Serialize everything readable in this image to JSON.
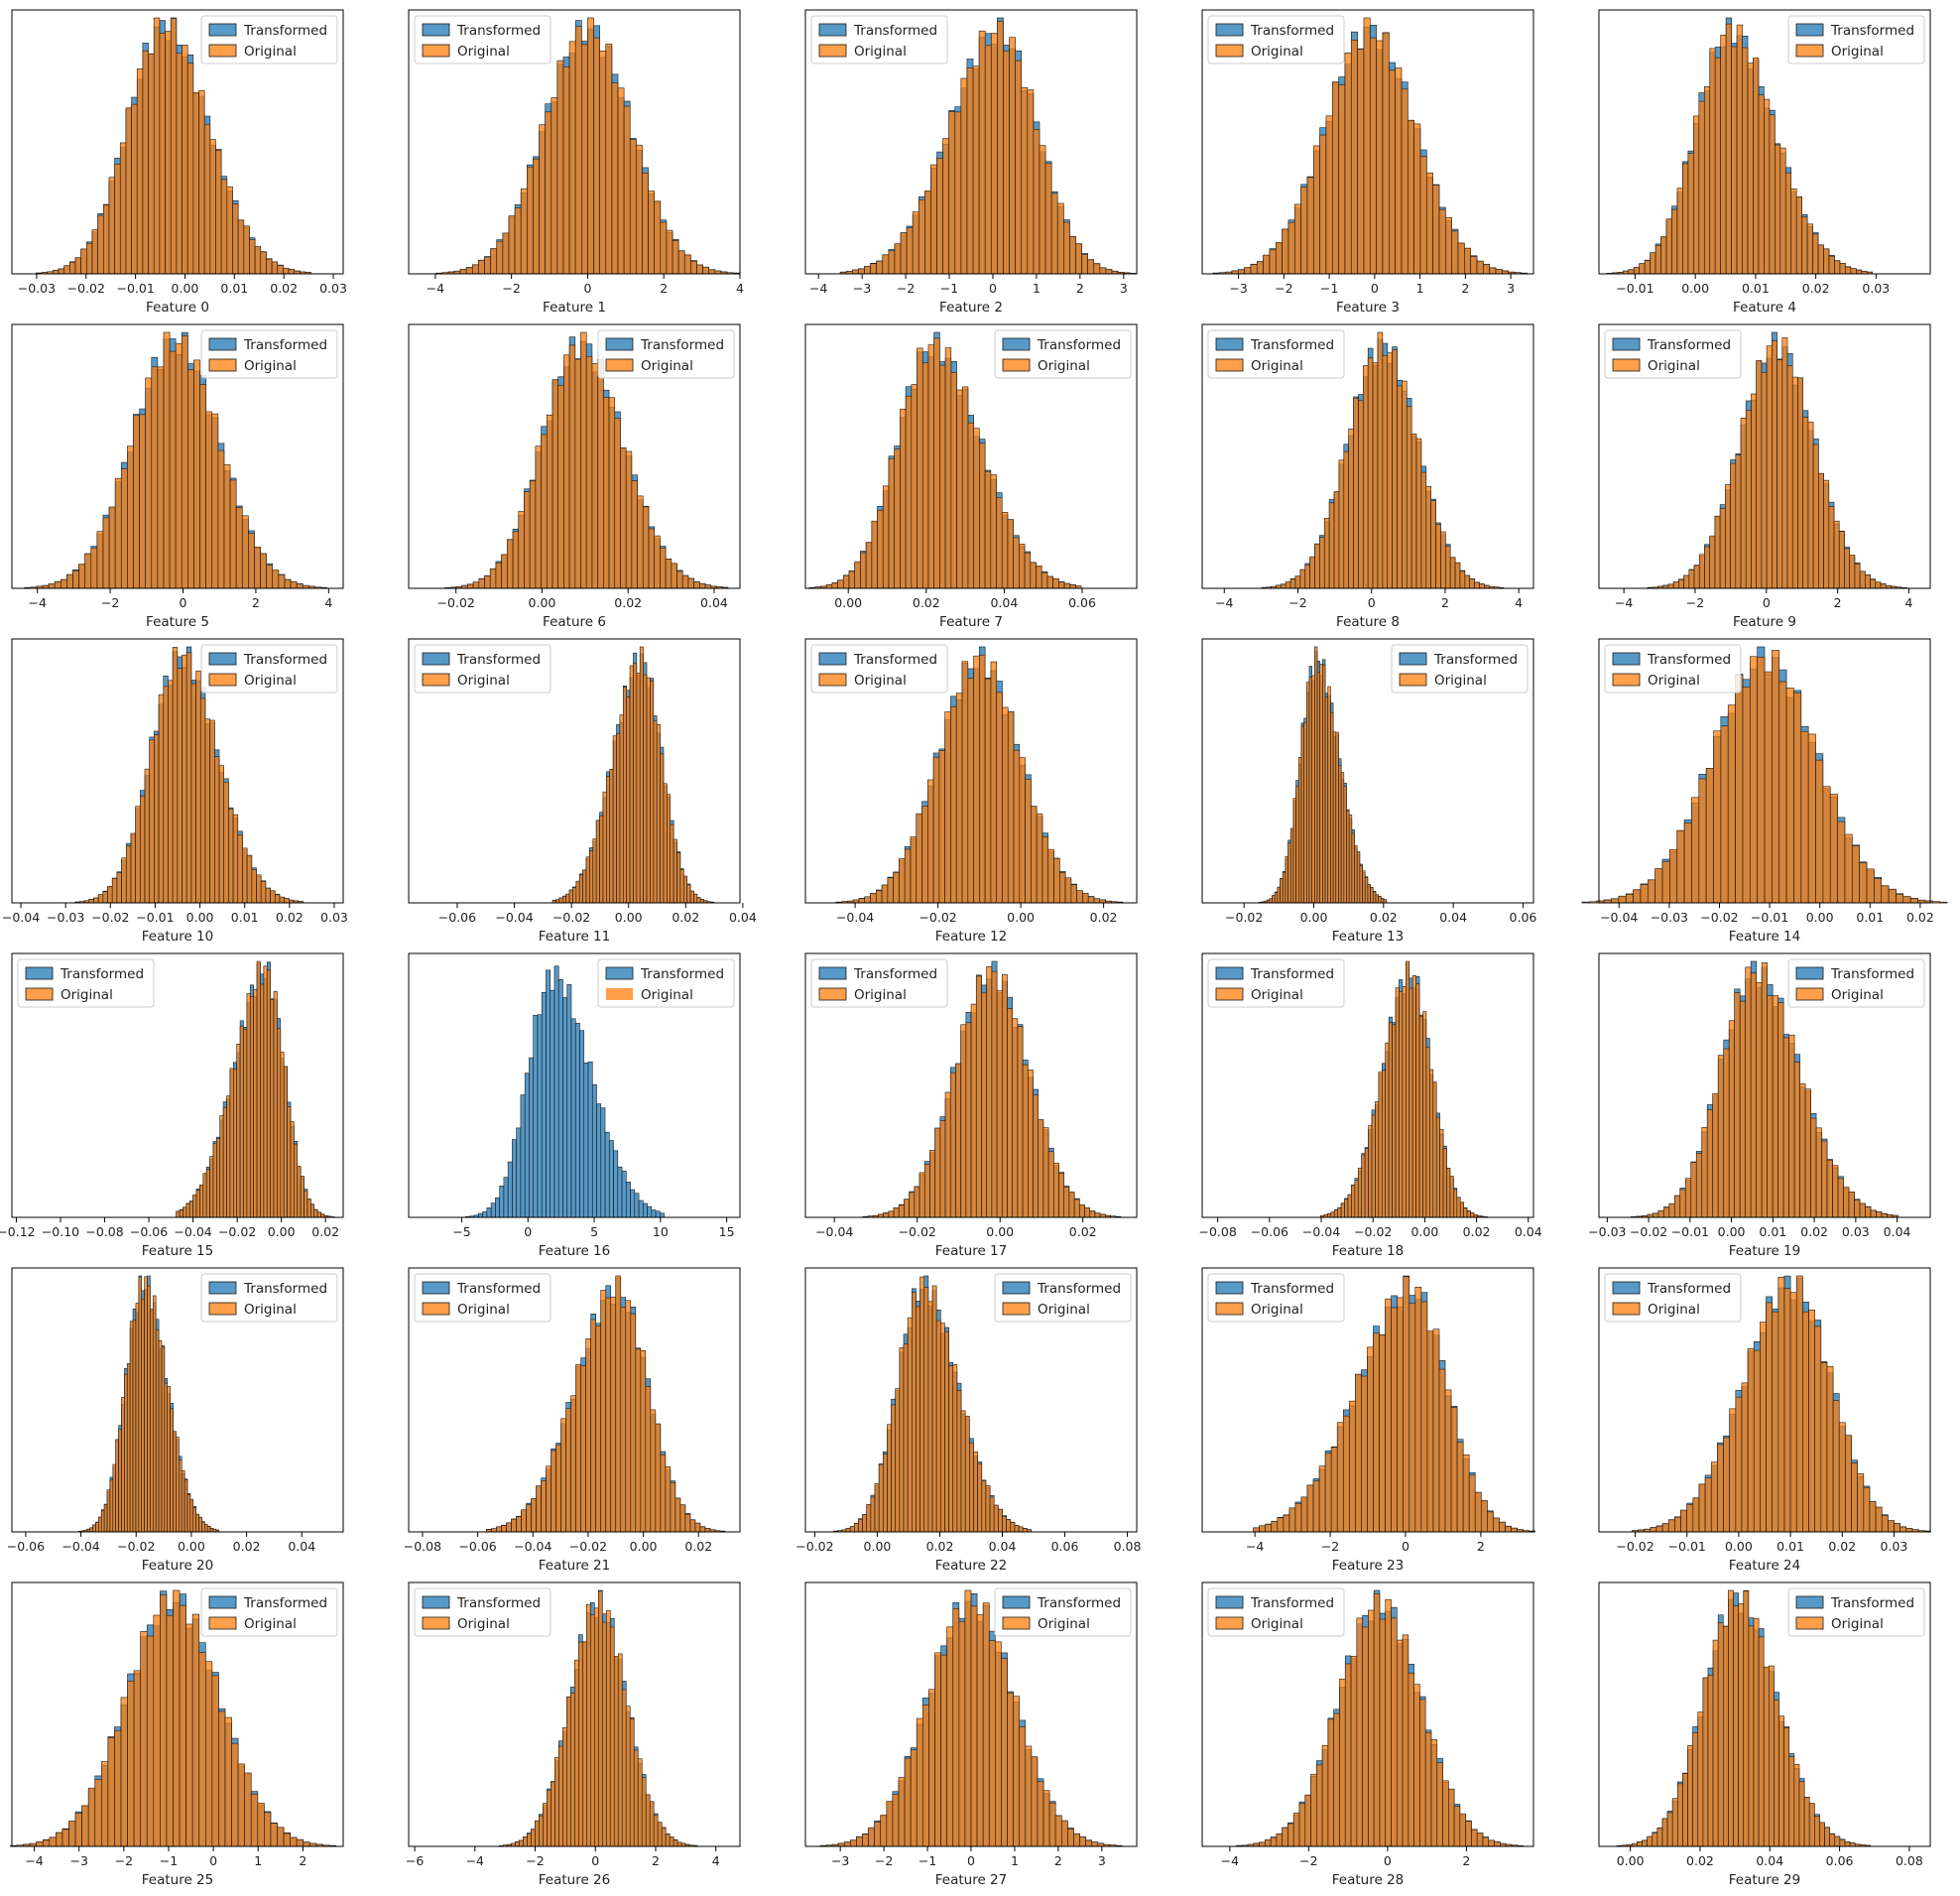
{
  "figure": {
    "legend_labels": [
      "Transformed",
      "Original"
    ],
    "colors": {
      "transformed": "#1f77b4",
      "original": "#ff7f0e"
    }
  },
  "chart_data": [
    {
      "type": "bar",
      "xlabel": "Feature 0",
      "xlim": [
        -0.035,
        0.032
      ],
      "xticks": [
        -0.03,
        -0.02,
        -0.01,
        0.0,
        0.01,
        0.02,
        0.03
      ],
      "mean": -0.004,
      "std": 0.0082,
      "skew": 0.3,
      "legend": "top-right"
    },
    {
      "type": "bar",
      "xlabel": "Feature 1",
      "xlim": [
        -4.7,
        4.0
      ],
      "xticks": [
        -4,
        -2,
        0,
        2,
        4
      ],
      "mean": 0.0,
      "std": 1.15,
      "skew": 0,
      "legend": "top-left"
    },
    {
      "type": "bar",
      "xlabel": "Feature 2",
      "xlim": [
        -4.3,
        3.3
      ],
      "xticks": [
        -4,
        -3,
        -2,
        -1,
        0,
        1,
        2,
        3
      ],
      "mean": 0.1,
      "std": 1.0,
      "skew": -0.4,
      "legend": "top-left"
    },
    {
      "type": "bar",
      "xlabel": "Feature 3",
      "xlim": [
        -3.8,
        3.5
      ],
      "xticks": [
        -3,
        -2,
        -1,
        0,
        1,
        2,
        3
      ],
      "mean": -0.1,
      "std": 1.0,
      "skew": 0,
      "legend": "top-left"
    },
    {
      "type": "bar",
      "xlabel": "Feature 4",
      "xlim": [
        -0.016,
        0.039
      ],
      "xticks": [
        -0.01,
        0.0,
        0.01,
        0.02,
        0.03
      ],
      "mean": 0.006,
      "std": 0.0065,
      "skew": 0.4,
      "legend": "top-right"
    },
    {
      "type": "bar",
      "xlabel": "Feature 5",
      "xlim": [
        -4.7,
        4.4
      ],
      "xticks": [
        -4,
        -2,
        0,
        2,
        4
      ],
      "mean": -0.2,
      "std": 1.2,
      "skew": 0,
      "legend": "top-right"
    },
    {
      "type": "bar",
      "xlabel": "Feature 6",
      "xlim": [
        -0.031,
        0.046
      ],
      "xticks": [
        -0.02,
        0.0,
        0.02,
        0.04
      ],
      "mean": 0.009,
      "std": 0.0095,
      "skew": 0.2,
      "legend": "top-right"
    },
    {
      "type": "bar",
      "xlabel": "Feature 7",
      "xlim": [
        -0.011,
        0.074
      ],
      "xticks": [
        0.0,
        0.02,
        0.04,
        0.06
      ],
      "mean": 0.022,
      "std": 0.0105,
      "skew": 0.5,
      "legend": "top-right"
    },
    {
      "type": "bar",
      "xlabel": "Feature 8",
      "xlim": [
        -4.6,
        4.4
      ],
      "xticks": [
        -4,
        -2,
        0,
        2,
        4
      ],
      "mean": 0.3,
      "std": 0.95,
      "skew": 0,
      "legend": "top-left"
    },
    {
      "type": "bar",
      "xlabel": "Feature 9",
      "xlim": [
        -4.7,
        4.6
      ],
      "xticks": [
        -4,
        -2,
        0,
        2,
        4
      ],
      "mean": 0.3,
      "std": 1.05,
      "skew": 0,
      "legend": "top-left"
    },
    {
      "type": "bar",
      "xlabel": "Feature 10",
      "xlim": [
        -0.042,
        0.032
      ],
      "xticks": [
        -0.04,
        -0.03,
        -0.02,
        -0.01,
        0.0,
        0.01,
        0.02,
        0.03
      ],
      "mean": -0.004,
      "std": 0.0075,
      "skew": 0.3,
      "legend": "top-right"
    },
    {
      "type": "bar",
      "xlabel": "Feature 11",
      "xlim": [
        -0.077,
        0.039
      ],
      "xticks": [
        -0.06,
        -0.04,
        -0.02,
        0.0,
        0.02,
        0.04
      ],
      "mean": 0.004,
      "std": 0.0085,
      "skew": -0.5,
      "legend": "top-left"
    },
    {
      "type": "bar",
      "xlabel": "Feature 12",
      "xlim": [
        -0.052,
        0.028
      ],
      "xticks": [
        -0.04,
        -0.02,
        0.0,
        0.02
      ],
      "mean": -0.01,
      "std": 0.01,
      "skew": 0,
      "legend": "top-left"
    },
    {
      "type": "bar",
      "xlabel": "Feature 13",
      "xlim": [
        -0.032,
        0.063
      ],
      "xticks": [
        -0.02,
        0.0,
        0.02,
        0.04,
        0.06
      ],
      "mean": 0.001,
      "std": 0.0055,
      "skew": 0.6,
      "legend": "top-right"
    },
    {
      "type": "bar",
      "xlabel": "Feature 14",
      "xlim": [
        -0.044,
        0.022
      ],
      "xticks": [
        -0.04,
        -0.03,
        -0.02,
        -0.01,
        0.0,
        0.01,
        0.02
      ],
      "mean": -0.011,
      "std": 0.0105,
      "skew": 0,
      "legend": "top-left"
    },
    {
      "type": "bar",
      "xlabel": "Feature 15",
      "xlim": [
        -0.122,
        0.028
      ],
      "xticks": [
        -0.12,
        -0.1,
        -0.08,
        -0.06,
        -0.04,
        -0.02,
        0.0,
        0.02
      ],
      "mean": -0.008,
      "std": 0.011,
      "skew": -0.8,
      "legend": "top-left"
    },
    {
      "type": "bar",
      "xlabel": "Feature 16",
      "xlim": [
        -9.0,
        16.0
      ],
      "xticks": [
        -5,
        0,
        5,
        10,
        15
      ],
      "mean": 2.0,
      "std": 2.3,
      "skew": 0.7,
      "legend": "top-right",
      "only_transformed": true
    },
    {
      "type": "bar",
      "xlabel": "Feature 17",
      "xlim": [
        -0.047,
        0.033
      ],
      "xticks": [
        -0.04,
        -0.02,
        0.0,
        0.02
      ],
      "mean": -0.002,
      "std": 0.009,
      "skew": 0,
      "legend": "top-left"
    },
    {
      "type": "bar",
      "xlabel": "Feature 18",
      "xlim": [
        -0.086,
        0.042
      ],
      "xticks": [
        -0.08,
        -0.06,
        -0.04,
        -0.02,
        0.0,
        0.02,
        0.04
      ],
      "mean": -0.006,
      "std": 0.0095,
      "skew": -0.4,
      "legend": "top-left"
    },
    {
      "type": "bar",
      "xlabel": "Feature 19",
      "xlim": [
        -0.032,
        0.048
      ],
      "xticks": [
        -0.03,
        -0.02,
        -0.01,
        0.0,
        0.01,
        0.02,
        0.03,
        0.04
      ],
      "mean": 0.006,
      "std": 0.0095,
      "skew": 0.4,
      "legend": "top-right"
    },
    {
      "type": "bar",
      "xlabel": "Feature 20",
      "xlim": [
        -0.065,
        0.055
      ],
      "xticks": [
        -0.06,
        -0.04,
        -0.02,
        0.0,
        0.02,
        0.04
      ],
      "mean": -0.017,
      "std": 0.0075,
      "skew": 0.4,
      "legend": "top-right"
    },
    {
      "type": "bar",
      "xlabel": "Feature 21",
      "xlim": [
        -0.085,
        0.035
      ],
      "xticks": [
        -0.08,
        -0.06,
        -0.04,
        -0.02,
        0.0,
        0.02
      ],
      "mean": -0.01,
      "std": 0.013,
      "skew": -0.5,
      "legend": "top-left"
    },
    {
      "type": "bar",
      "xlabel": "Feature 22",
      "xlim": [
        -0.023,
        0.083
      ],
      "xticks": [
        -0.02,
        0.0,
        0.02,
        0.04,
        0.06,
        0.08
      ],
      "mean": 0.015,
      "std": 0.0095,
      "skew": 0.5,
      "legend": "top-right"
    },
    {
      "type": "bar",
      "xlabel": "Feature 23",
      "xlim": [
        -5.4,
        3.4
      ],
      "xticks": [
        -4,
        -2,
        0,
        2
      ],
      "mean": 0.1,
      "std": 1.15,
      "skew": -0.7,
      "legend": "top-left"
    },
    {
      "type": "bar",
      "xlabel": "Feature 24",
      "xlim": [
        -0.027,
        0.037
      ],
      "xticks": [
        -0.02,
        -0.01,
        0.0,
        0.01,
        0.02,
        0.03
      ],
      "mean": 0.01,
      "std": 0.0085,
      "skew": -0.3,
      "legend": "top-left"
    },
    {
      "type": "bar",
      "xlabel": "Feature 25",
      "xlim": [
        -4.5,
        2.9
      ],
      "xticks": [
        -4,
        -3,
        -2,
        -1,
        0,
        1,
        2
      ],
      "mean": -0.9,
      "std": 1.05,
      "skew": 0,
      "legend": "top-right"
    },
    {
      "type": "bar",
      "xlabel": "Feature 26",
      "xlim": [
        -6.2,
        4.8
      ],
      "xticks": [
        -6,
        -4,
        -2,
        0,
        2,
        4
      ],
      "mean": 0.1,
      "std": 0.95,
      "skew": 0,
      "legend": "top-left"
    },
    {
      "type": "bar",
      "xlabel": "Feature 27",
      "xlim": [
        -3.8,
        3.8
      ],
      "xticks": [
        -3,
        -2,
        -1,
        0,
        1,
        2,
        3
      ],
      "mean": 0.0,
      "std": 1.0,
      "skew": 0,
      "legend": "top-right"
    },
    {
      "type": "bar",
      "xlabel": "Feature 28",
      "xlim": [
        -4.7,
        3.7
      ],
      "xticks": [
        -4,
        -2,
        0,
        2
      ],
      "mean": -0.2,
      "std": 1.05,
      "skew": 0,
      "legend": "top-left"
    },
    {
      "type": "bar",
      "xlabel": "Feature 29",
      "xlim": [
        -0.009,
        0.086
      ],
      "xticks": [
        0.0,
        0.02,
        0.04,
        0.06,
        0.08
      ],
      "mean": 0.031,
      "std": 0.0105,
      "skew": 0.2,
      "legend": "top-right"
    }
  ]
}
